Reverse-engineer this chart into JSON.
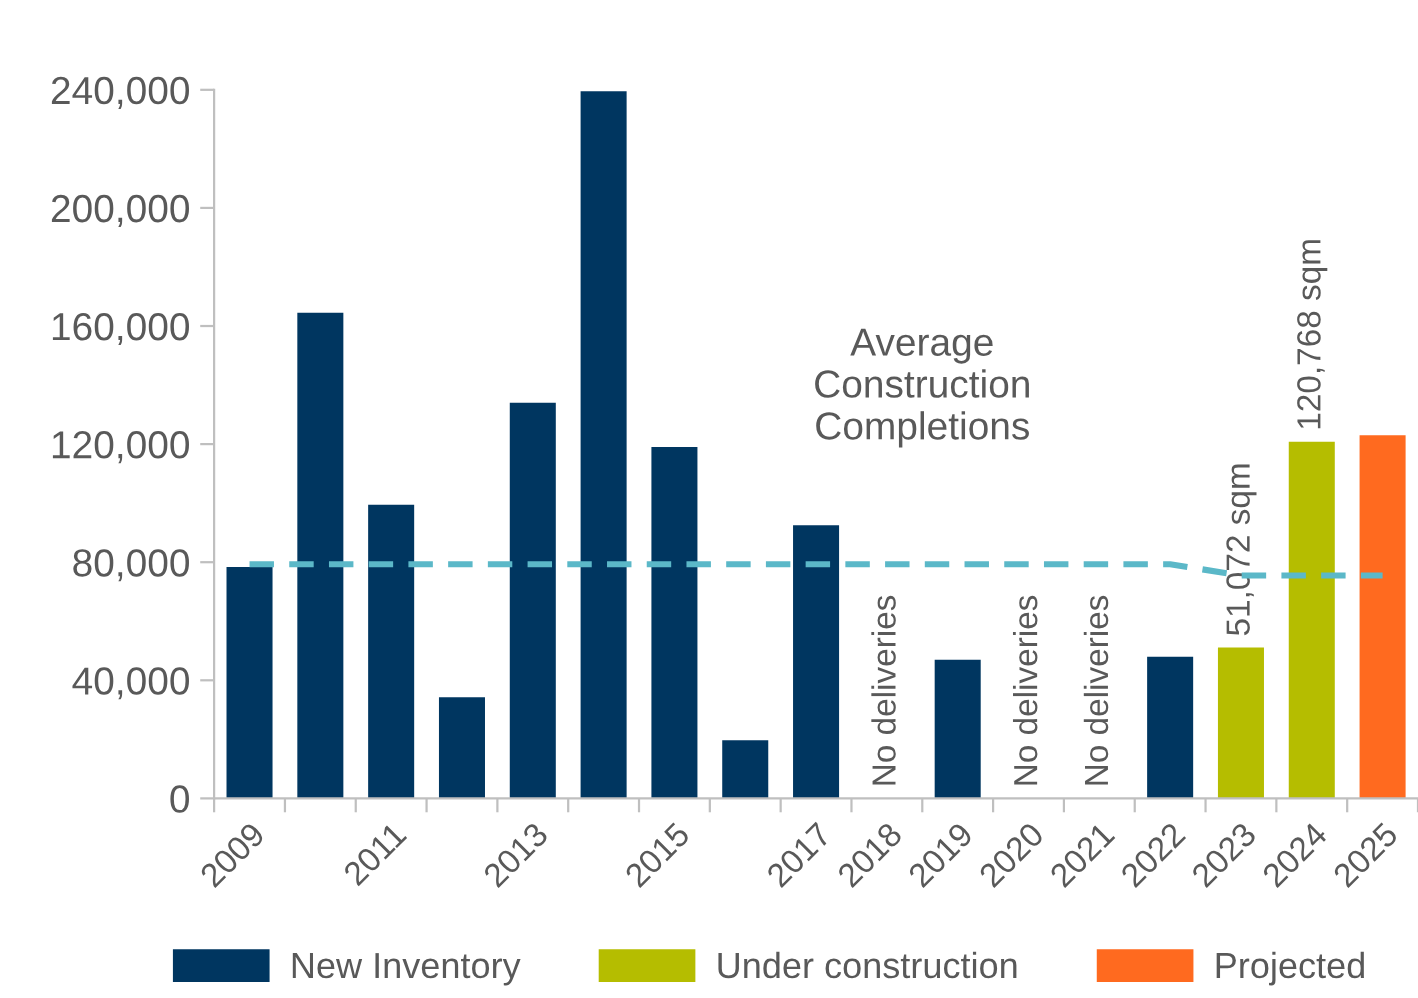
{
  "chart_data": {
    "type": "bar",
    "categories": [
      "2009",
      null,
      "2011",
      null,
      "2013",
      null,
      "2015",
      null,
      "2017",
      "2018",
      "2019",
      "2020",
      "2021",
      "2022",
      "2023",
      "2024",
      "2025"
    ],
    "series": [
      {
        "name": "New Inventory",
        "color": "#003660",
        "values": [
          78400,
          164500,
          99500,
          34300,
          134000,
          239500,
          119000,
          19700,
          92500,
          null,
          47000,
          null,
          null,
          48000,
          null,
          null,
          null
        ],
        "value_labels": [
          null,
          null,
          null,
          null,
          null,
          null,
          null,
          null,
          null,
          "No deliveries",
          null,
          "No deliveries",
          "No deliveries",
          null,
          null,
          null,
          null
        ]
      },
      {
        "name": "Under construction",
        "color": "#b5bd00",
        "values": [
          null,
          null,
          null,
          null,
          null,
          null,
          null,
          null,
          null,
          null,
          null,
          null,
          null,
          null,
          51072,
          120768,
          null
        ],
        "value_labels": [
          null,
          null,
          null,
          null,
          null,
          null,
          null,
          null,
          null,
          null,
          null,
          null,
          null,
          null,
          "51,072 sqm",
          "120,768 sqm",
          null
        ]
      },
      {
        "name": "Projected",
        "color": "#ff6a1f",
        "values": [
          null,
          null,
          null,
          null,
          null,
          null,
          null,
          null,
          null,
          null,
          null,
          null,
          null,
          null,
          null,
          null,
          123000
        ]
      },
      {
        "type": "line",
        "color": "#5bb8c8",
        "line_style": "dashed",
        "marker": "none",
        "values": [
          79300,
          79300,
          79300,
          79300,
          79300,
          79300,
          79300,
          79300,
          79300,
          79300,
          79300,
          79300,
          79300,
          79300,
          75500,
          75500,
          75500
        ]
      }
    ],
    "ylim": [
      0,
      240000
    ],
    "yticks": [
      {
        "value": 0,
        "label": "0"
      },
      {
        "value": 40000,
        "label": "40,000"
      },
      {
        "value": 80000,
        "label": "80,000"
      },
      {
        "value": 120000,
        "label": "120,000"
      },
      {
        "value": 160000,
        "label": "160,000"
      },
      {
        "value": 200000,
        "label": "200,000"
      },
      {
        "value": 240000,
        "label": "240,000"
      }
    ],
    "annotations": [
      "Average\nConstruction\nCompletions"
    ],
    "grid": false,
    "legend": "bottom"
  }
}
